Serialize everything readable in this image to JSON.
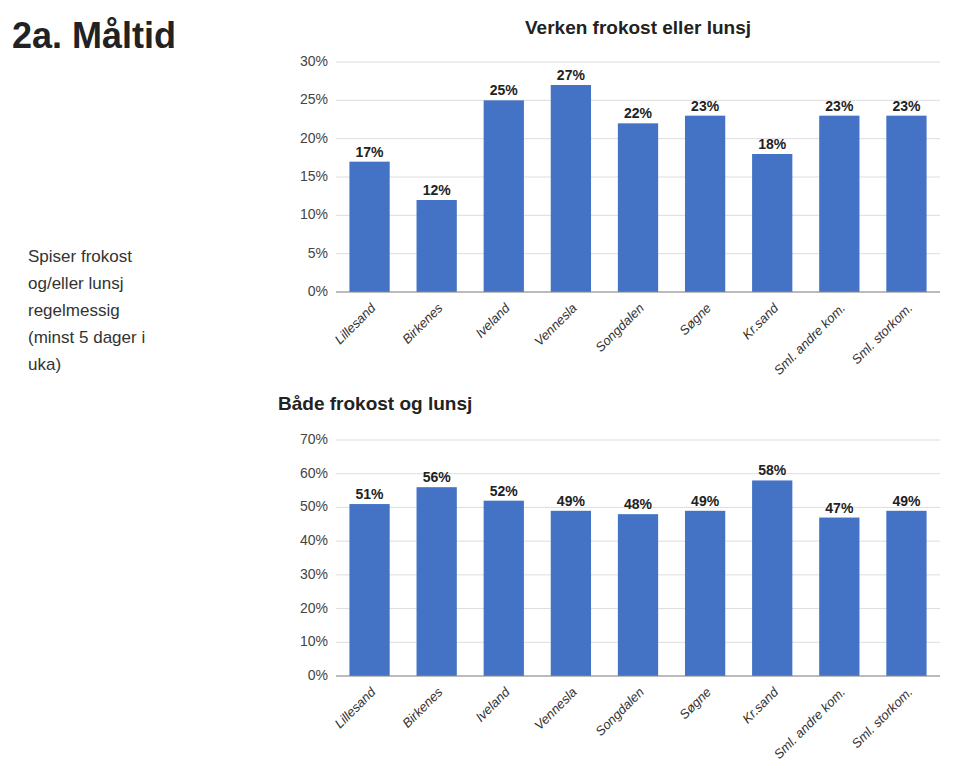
{
  "title": "2a. Måltid",
  "subtitle": "Spiser frokost\nog/eller lunsj\nregelmessig\n(minst 5 dager i\nuka)",
  "chart_data": [
    {
      "type": "bar",
      "title": "Verken frokost eller lunsj",
      "categories": [
        "Lillesand",
        "Birkenes",
        "Iveland",
        "Vennesla",
        "Songdalen",
        "Søgne",
        "Kr.sand",
        "Sml. andre kom.",
        "Sml. storkom."
      ],
      "values": [
        17,
        12,
        25,
        27,
        22,
        23,
        18,
        23,
        23
      ],
      "value_labels": [
        "17%",
        "12%",
        "25%",
        "27%",
        "22%",
        "23%",
        "18%",
        "23%",
        "23%"
      ],
      "color": "#4472C4",
      "ylim": [
        0,
        30
      ],
      "yticks": [
        {
          "value": 0,
          "label": "0%"
        },
        {
          "value": 5,
          "label": "5%"
        },
        {
          "value": 10,
          "label": "10%"
        },
        {
          "value": 15,
          "label": "15%"
        },
        {
          "value": 20,
          "label": "20%"
        },
        {
          "value": 25,
          "label": "25%"
        },
        {
          "value": 30,
          "label": "30%"
        }
      ],
      "grid": true,
      "data_labels": true
    },
    {
      "type": "bar",
      "title": "Både frokost og lunsj",
      "categories": [
        "Lillesand",
        "Birkenes",
        "Iveland",
        "Vennesla",
        "Songdalen",
        "Søgne",
        "Kr.sand",
        "Sml. andre kom.",
        "Sml. storkom."
      ],
      "values": [
        51,
        56,
        52,
        49,
        48,
        49,
        58,
        47,
        49
      ],
      "value_labels": [
        "51%",
        "56%",
        "52%",
        "49%",
        "48%",
        "49%",
        "58%",
        "47%",
        "49%"
      ],
      "color": "#4472C4",
      "ylim": [
        0,
        70
      ],
      "yticks": [
        {
          "value": 0,
          "label": "0%"
        },
        {
          "value": 10,
          "label": "10%"
        },
        {
          "value": 20,
          "label": "20%"
        },
        {
          "value": 30,
          "label": "30%"
        },
        {
          "value": 40,
          "label": "40%"
        },
        {
          "value": 50,
          "label": "50%"
        },
        {
          "value": 60,
          "label": "60%"
        },
        {
          "value": 70,
          "label": "70%"
        }
      ],
      "grid": true,
      "data_labels": true
    }
  ]
}
